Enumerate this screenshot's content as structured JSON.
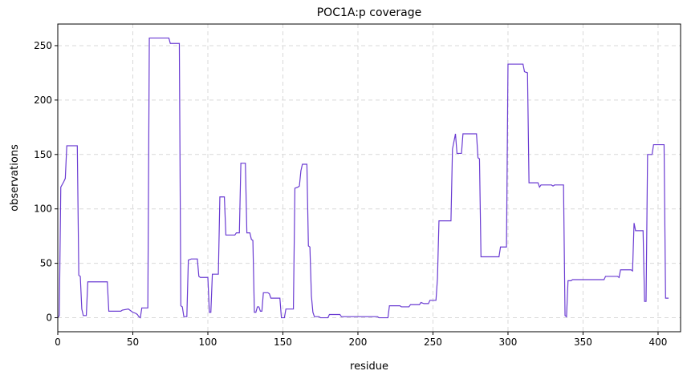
{
  "chart_data": {
    "type": "line",
    "title": "POC1A:p coverage",
    "x_label": "residue",
    "y_label": "observations",
    "xlim": [
      0,
      415
    ],
    "ylim": [
      -12.85,
      269.85
    ],
    "xticks": [
      0,
      50,
      100,
      150,
      200,
      250,
      300,
      350,
      400
    ],
    "yticks": [
      0,
      50,
      100,
      150,
      200,
      250
    ],
    "grid": true,
    "series": [
      {
        "name": "coverage",
        "color": "#6a3bd2",
        "x": [
          0,
          1,
          2,
          4,
          5,
          6,
          13,
          14,
          15,
          16,
          17,
          19,
          20,
          33,
          34,
          42,
          43,
          47,
          49,
          50,
          52,
          53,
          54,
          55,
          56,
          60,
          61,
          74,
          75,
          81,
          82,
          83,
          84,
          86,
          87,
          89,
          93,
          94,
          95,
          100,
          101,
          102,
          103,
          107,
          108,
          111,
          112,
          118,
          119,
          121,
          122,
          125,
          126,
          128,
          129,
          130,
          131,
          132,
          133,
          134,
          135,
          136,
          137,
          140,
          141,
          142,
          148,
          149,
          151,
          152,
          157,
          158,
          160,
          161,
          162,
          163,
          166,
          167,
          168,
          169,
          170,
          171,
          174,
          175,
          180,
          181,
          188,
          189,
          213,
          214,
          220,
          221,
          228,
          229,
          234,
          235,
          241,
          242,
          244,
          247,
          248,
          252,
          253,
          254,
          262,
          263,
          265,
          266,
          269,
          270,
          279,
          280,
          281,
          282,
          294,
          295,
          299,
          300,
          310,
          311,
          313,
          314,
          320,
          321,
          322,
          329,
          330,
          331,
          337,
          338,
          339,
          340,
          342,
          343,
          364,
          365,
          373,
          374,
          375,
          382,
          383,
          384,
          385,
          390,
          391,
          392,
          393,
          396,
          397,
          404,
          405,
          407
        ],
        "values": [
          0,
          2,
          120,
          125,
          128,
          158,
          158,
          39,
          38,
          8,
          2,
          2,
          33,
          33,
          6,
          6,
          7,
          8,
          6,
          5,
          4,
          3,
          1,
          0,
          9,
          9,
          257,
          257,
          252,
          252,
          11,
          10,
          1,
          1,
          53,
          54,
          54,
          38,
          37,
          37,
          5,
          5,
          40,
          40,
          111,
          111,
          76,
          76,
          78,
          78,
          142,
          142,
          78,
          78,
          72,
          71,
          5,
          5,
          10,
          10,
          6,
          6,
          23,
          23,
          22,
          18,
          18,
          0,
          0,
          8,
          8,
          119,
          120,
          121,
          135,
          141,
          141,
          66,
          65,
          20,
          5,
          1,
          1,
          0,
          0,
          3,
          3,
          1,
          1,
          0,
          0,
          11,
          11,
          10,
          10,
          12,
          12,
          14,
          13,
          13,
          16,
          16,
          36,
          89,
          89,
          155,
          169,
          151,
          151,
          169,
          169,
          147,
          146,
          56,
          56,
          65,
          65,
          233,
          233,
          226,
          225,
          124,
          124,
          120,
          122,
          122,
          121,
          122,
          122,
          2,
          1,
          34,
          34,
          35,
          35,
          38,
          38,
          37,
          44,
          44,
          43,
          87,
          80,
          80,
          15,
          15,
          150,
          150,
          159,
          159,
          18,
          18
        ]
      }
    ]
  }
}
